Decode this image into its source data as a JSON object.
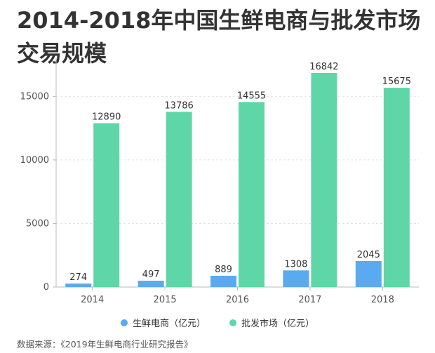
{
  "title": "2014-2018年中国生鲜电商与批发市场交易规模",
  "source_note": "数据来源：《2019年生鲜电商行业研究报告》",
  "chart_data": {
    "type": "bar",
    "title": "2014-2018年中国生鲜电商与批发市场交易规模",
    "categories": [
      "2014",
      "2015",
      "2016",
      "2017",
      "2018"
    ],
    "series": [
      {
        "name": "生鲜电商（亿元）",
        "values": [
          274,
          497,
          889,
          1308,
          2045
        ],
        "color": "#5aaaf0"
      },
      {
        "name": "批发市场（亿元）",
        "values": [
          12890,
          13786,
          14555,
          16842,
          15675
        ],
        "color": "#5fd6a8"
      }
    ],
    "ylim": [
      0,
      18000
    ],
    "yticks": [
      0,
      5000,
      10000,
      15000
    ],
    "grid": true,
    "legend_position": "bottom"
  }
}
